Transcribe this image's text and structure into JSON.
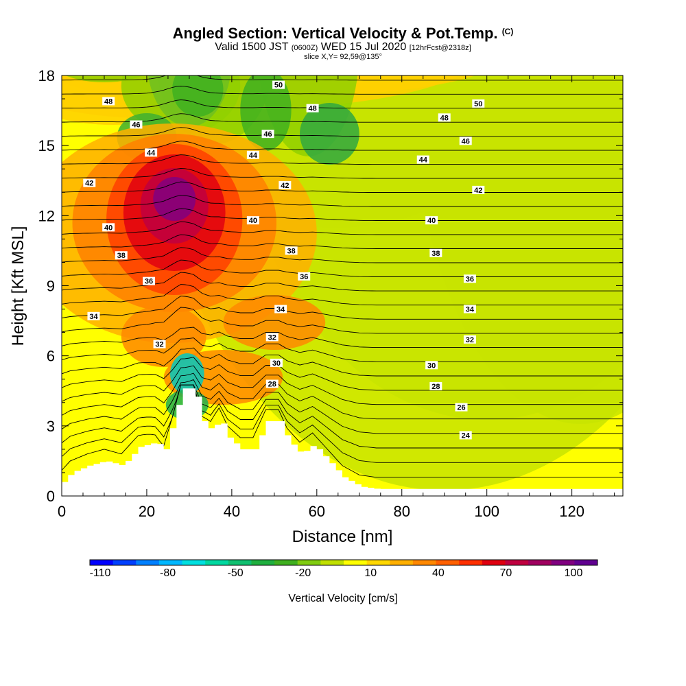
{
  "header": {
    "title": "Angled Section: Vertical Velocity & Pot.Temp.",
    "title_unit": "(C)",
    "valid_prefix": "Valid 1500 JST",
    "valid_utc": "(0600Z)",
    "valid_date": "WED 15 Jul 2020",
    "forecast": "[12hrFcst@2318z]",
    "slice": "slice X,Y= 92,59@135°"
  },
  "chart_data": {
    "type": "heatmap",
    "xlabel": "Distance [nm]",
    "ylabel": "Height [Kft MSL]",
    "xlim": [
      0,
      132
    ],
    "ylim": [
      0,
      18
    ],
    "x_ticks": [
      "0",
      "20",
      "40",
      "60",
      "80",
      "100",
      "120"
    ],
    "y_ticks": [
      "0",
      "3",
      "6",
      "9",
      "12",
      "15",
      "18"
    ],
    "colorbar": {
      "title": "Vertical Velocity [cm/s]",
      "labels": [
        "-110",
        "-80",
        "-50",
        "-20",
        "10",
        "40",
        "70",
        "100"
      ],
      "colors": [
        "#0000ff",
        "#0040ff",
        "#0080ff",
        "#00b8ff",
        "#00e0e0",
        "#00d8a0",
        "#10c070",
        "#20b040",
        "#40b020",
        "#80cc10",
        "#c0e000",
        "#ffff00",
        "#ffd800",
        "#ffb000",
        "#ff8800",
        "#ff6000",
        "#ff3000",
        "#e00010",
        "#c00040",
        "#a00060",
        "#800080",
        "#600090"
      ]
    },
    "terrain": [
      [
        0,
        0.6
      ],
      [
        2,
        1.0
      ],
      [
        6,
        1.3
      ],
      [
        10,
        1.5
      ],
      [
        14,
        1.3
      ],
      [
        18,
        2.1
      ],
      [
        22,
        2.3
      ],
      [
        24,
        2.0
      ],
      [
        26,
        3.2
      ],
      [
        28,
        4.6
      ],
      [
        31,
        4.6
      ],
      [
        33,
        3.2
      ],
      [
        35,
        2.8
      ],
      [
        37,
        3.3
      ],
      [
        39,
        2.5
      ],
      [
        42,
        2.0
      ],
      [
        45,
        2.0
      ],
      [
        48,
        3.2
      ],
      [
        51,
        3.2
      ],
      [
        53,
        2.4
      ],
      [
        56,
        1.8
      ],
      [
        59,
        2.2
      ],
      [
        62,
        1.6
      ],
      [
        66,
        0.8
      ],
      [
        70,
        0.4
      ],
      [
        74,
        0.3
      ],
      [
        132,
        0.3
      ]
    ],
    "theta_labels": [
      {
        "text": "48",
        "x": 11,
        "y": 16.9
      },
      {
        "text": "46",
        "x": 17.5,
        "y": 15.9
      },
      {
        "text": "44",
        "x": 21,
        "y": 14.7
      },
      {
        "text": "42",
        "x": 6.5,
        "y": 13.4
      },
      {
        "text": "40",
        "x": 11,
        "y": 11.5
      },
      {
        "text": "38",
        "x": 14,
        "y": 10.3
      },
      {
        "text": "36",
        "x": 20.5,
        "y": 9.2
      },
      {
        "text": "34",
        "x": 7.5,
        "y": 7.7
      },
      {
        "text": "32",
        "x": 23,
        "y": 6.5
      },
      {
        "text": "50",
        "x": 51,
        "y": 17.6
      },
      {
        "text": "48",
        "x": 59,
        "y": 16.6
      },
      {
        "text": "46",
        "x": 48.5,
        "y": 15.5
      },
      {
        "text": "44",
        "x": 45,
        "y": 14.6
      },
      {
        "text": "42",
        "x": 52.5,
        "y": 13.3
      },
      {
        "text": "40",
        "x": 45,
        "y": 11.8
      },
      {
        "text": "38",
        "x": 54,
        "y": 10.5
      },
      {
        "text": "36",
        "x": 57,
        "y": 9.4
      },
      {
        "text": "34",
        "x": 51.5,
        "y": 8.0
      },
      {
        "text": "32",
        "x": 49.5,
        "y": 6.8
      },
      {
        "text": "30",
        "x": 50.5,
        "y": 5.7
      },
      {
        "text": "28",
        "x": 49.5,
        "y": 4.8
      },
      {
        "text": "50",
        "x": 98,
        "y": 16.8
      },
      {
        "text": "48",
        "x": 90,
        "y": 16.2
      },
      {
        "text": "46",
        "x": 95,
        "y": 15.2
      },
      {
        "text": "44",
        "x": 85,
        "y": 14.4
      },
      {
        "text": "42",
        "x": 98,
        "y": 13.1
      },
      {
        "text": "40",
        "x": 87,
        "y": 11.8
      },
      {
        "text": "38",
        "x": 88,
        "y": 10.4
      },
      {
        "text": "36",
        "x": 96,
        "y": 9.3
      },
      {
        "text": "34",
        "x": 96,
        "y": 8.0
      },
      {
        "text": "32",
        "x": 96,
        "y": 6.7
      },
      {
        "text": "30",
        "x": 87,
        "y": 5.6
      },
      {
        "text": "28",
        "x": 88,
        "y": 4.7
      },
      {
        "text": "26",
        "x": 94,
        "y": 3.8
      },
      {
        "text": "24",
        "x": 95,
        "y": 2.6
      }
    ]
  }
}
